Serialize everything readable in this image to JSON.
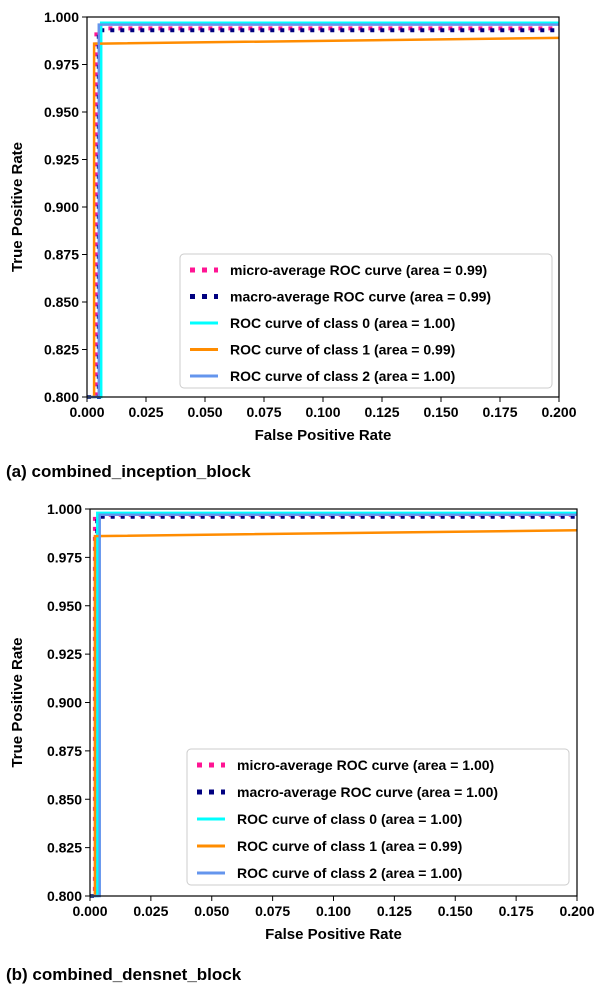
{
  "chart_data": [
    {
      "type": "line",
      "caption": "(a) combined_inception_block",
      "xlabel": "False Positive Rate",
      "ylabel": "True Positive Rate",
      "xlim": [
        0.0,
        0.2
      ],
      "ylim": [
        0.8,
        1.0
      ],
      "x_ticks": [
        "0.000",
        "0.025",
        "0.050",
        "0.075",
        "0.100",
        "0.125",
        "0.150",
        "0.175",
        "0.200"
      ],
      "y_ticks": [
        "0.800",
        "0.825",
        "0.850",
        "0.875",
        "0.900",
        "0.925",
        "0.950",
        "0.975",
        "1.000"
      ],
      "legend_position": "lower right",
      "grid": false,
      "series": [
        {
          "name": "micro-average ROC curve (area = 0.99)",
          "color": "#ff1493",
          "style": "dotted",
          "x": [
            0.0,
            0.004,
            0.004,
            0.2
          ],
          "y": [
            0.8,
            0.8,
            0.994,
            0.994
          ]
        },
        {
          "name": "macro-average ROC curve (area = 0.99)",
          "color": "#000080",
          "style": "dotted",
          "x": [
            0.0,
            0.005,
            0.005,
            0.2
          ],
          "y": [
            0.8,
            0.8,
            0.993,
            0.993
          ]
        },
        {
          "name": "ROC curve of class 0 (area = 1.00)",
          "color": "#00ffff",
          "style": "solid",
          "x": [
            0.0,
            0.006,
            0.006,
            0.2
          ],
          "y": [
            0.8,
            0.8,
            0.997,
            0.997
          ]
        },
        {
          "name": "ROC curve of class 1 (area = 0.99)",
          "color": "#ff8c00",
          "style": "solid",
          "x": [
            0.0,
            0.003,
            0.003,
            0.006,
            0.2
          ],
          "y": [
            0.8,
            0.8,
            0.986,
            0.986,
            0.989
          ]
        },
        {
          "name": "ROC curve of class 2 (area = 1.00)",
          "color": "#6495ed",
          "style": "solid",
          "x": [
            0.0,
            0.005,
            0.005,
            0.2
          ],
          "y": [
            0.8,
            0.8,
            0.996,
            0.996
          ]
        }
      ]
    },
    {
      "type": "line",
      "caption": "(b) combined_densnet_block",
      "xlabel": "False Positive Rate",
      "ylabel": "True Positive Rate",
      "xlim": [
        0.0,
        0.2
      ],
      "ylim": [
        0.8,
        1.0
      ],
      "x_ticks": [
        "0.000",
        "0.025",
        "0.050",
        "0.075",
        "0.100",
        "0.125",
        "0.150",
        "0.175",
        "0.200"
      ],
      "y_ticks": [
        "0.800",
        "0.825",
        "0.850",
        "0.875",
        "0.900",
        "0.925",
        "0.950",
        "0.975",
        "1.000"
      ],
      "legend_position": "lower right",
      "grid": false,
      "series": [
        {
          "name": "micro-average ROC curve (area = 1.00)",
          "color": "#ff1493",
          "style": "dotted",
          "x": [
            0.0,
            0.002,
            0.002,
            0.2
          ],
          "y": [
            0.8,
            0.8,
            0.997,
            0.997
          ]
        },
        {
          "name": "macro-average ROC curve (area = 1.00)",
          "color": "#000080",
          "style": "dotted",
          "x": [
            0.0,
            0.003,
            0.003,
            0.2
          ],
          "y": [
            0.8,
            0.8,
            0.996,
            0.996
          ]
        },
        {
          "name": "ROC curve of class 0 (area = 1.00)",
          "color": "#00ffff",
          "style": "solid",
          "x": [
            0.0,
            0.003,
            0.003,
            0.2
          ],
          "y": [
            0.8,
            0.8,
            0.998,
            0.998
          ]
        },
        {
          "name": "ROC curve of class 1 (area = 0.99)",
          "color": "#ff8c00",
          "style": "solid",
          "x": [
            0.0,
            0.002,
            0.002,
            0.2
          ],
          "y": [
            0.8,
            0.8,
            0.986,
            0.989
          ]
        },
        {
          "name": "ROC curve of class 2 (area = 1.00)",
          "color": "#6495ed",
          "style": "solid",
          "x": [
            0.0,
            0.004,
            0.004,
            0.2
          ],
          "y": [
            0.8,
            0.8,
            0.997,
            0.997
          ]
        }
      ]
    }
  ]
}
